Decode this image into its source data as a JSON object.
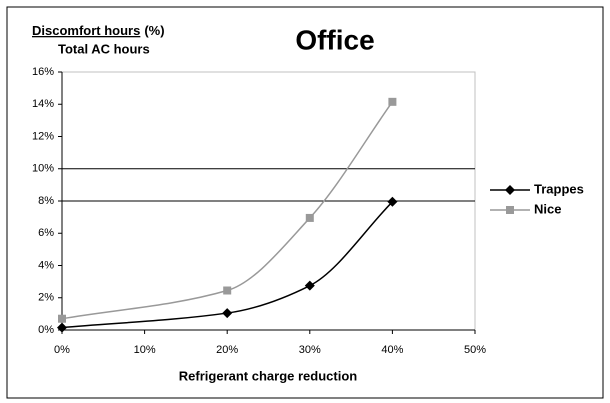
{
  "chart_data": {
    "type": "line",
    "title": "Office",
    "y_label": {
      "numerator": "Discomfort hours",
      "unit": "(%)",
      "denominator": "Total AC hours"
    },
    "x_label": "Refrigerant charge reduction",
    "x": [
      0,
      20,
      30,
      40
    ],
    "series": [
      {
        "name": "Trappes",
        "color": "#000000",
        "marker": "diamond",
        "values": [
          0.15,
          1.05,
          2.75,
          7.95
        ]
      },
      {
        "name": "Nice",
        "color": "#999999",
        "marker": "square",
        "values": [
          0.7,
          2.45,
          6.95,
          14.15
        ]
      }
    ],
    "xlim": [
      0,
      50
    ],
    "xticks": [
      {
        "value": 0,
        "label": "0%"
      },
      {
        "value": 10,
        "label": "10%"
      },
      {
        "value": 20,
        "label": "20%"
      },
      {
        "value": 30,
        "label": "30%"
      },
      {
        "value": 40,
        "label": "40%"
      },
      {
        "value": 50,
        "label": "50%"
      }
    ],
    "ylim": [
      0,
      16
    ],
    "yticks": [
      {
        "value": 0,
        "label": "0%"
      },
      {
        "value": 2,
        "label": "2%"
      },
      {
        "value": 4,
        "label": "4%"
      },
      {
        "value": 6,
        "label": "6%"
      },
      {
        "value": 8,
        "label": "8%"
      },
      {
        "value": 10,
        "label": "10%"
      },
      {
        "value": 12,
        "label": "12%"
      },
      {
        "value": 14,
        "label": "14%"
      },
      {
        "value": 16,
        "label": "16%"
      }
    ],
    "reference_lines": [
      8,
      10
    ],
    "legend": "right"
  }
}
